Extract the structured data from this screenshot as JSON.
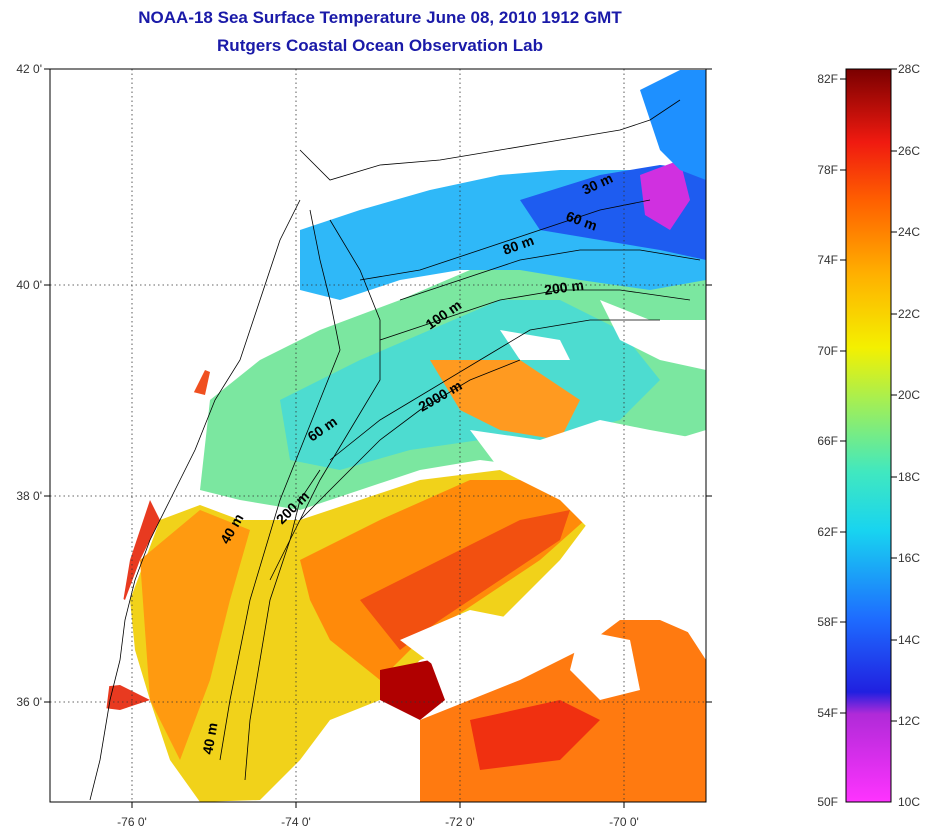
{
  "header": {
    "title": "NOAA-18 Sea Surface Temperature June 08, 2010 1912 GMT",
    "subtitle": "Rutgers Coastal Ocean Observation Lab"
  },
  "map": {
    "lat_labels": [
      "42 0'",
      "40 0'",
      "38 0'",
      "36 0'"
    ],
    "lon_labels": [
      "-76 0'",
      "-74 0'",
      "-72 0'",
      "-70 0'"
    ],
    "isobath_labels": [
      "30 m",
      "60 m",
      "80 m",
      "200 m",
      "100 m",
      "2000 m",
      "60 m",
      "200 m",
      "40 m",
      "40 m"
    ]
  },
  "colorbar": {
    "fahrenheit_labels": [
      "82F",
      "78F",
      "74F",
      "70F",
      "66F",
      "62F",
      "58F",
      "54F",
      "50F"
    ],
    "celsius_labels": [
      "28C",
      "26C",
      "24C",
      "22C",
      "20C",
      "18C",
      "16C",
      "14C",
      "12C",
      "10C"
    ],
    "colors": [
      "#ff33ff",
      "#9a1fc8",
      "#1f1fe0",
      "#1e7bff",
      "#16d8f0",
      "#7be39b",
      "#c8f03a",
      "#f7f000",
      "#ffb000",
      "#ff6a00",
      "#f01d10",
      "#7a0000"
    ]
  }
}
